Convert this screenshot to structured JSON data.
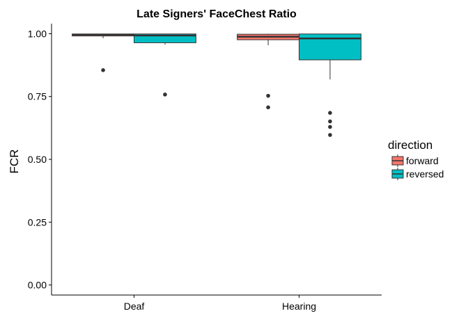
{
  "chart_data": {
    "type": "boxplot",
    "title": "Late Signers' FaceChest Ratio",
    "xlabel": "",
    "ylabel": "FCR",
    "ylim": [
      -0.04,
      1.04
    ],
    "yticks": [
      0.0,
      0.25,
      0.5,
      0.75,
      1.0
    ],
    "ytick_labels": [
      "0.00",
      "0.25",
      "0.50",
      "0.75",
      "1.00"
    ],
    "categories": [
      "Deaf",
      "Hearing"
    ],
    "grid": false,
    "legend": {
      "title": "direction",
      "position": "right"
    },
    "series": [
      {
        "name": "forward",
        "color": "#F8766D",
        "boxes": [
          {
            "category": "Deaf",
            "whisker_low": 0.982,
            "q1": 0.991,
            "median": 0.996,
            "q3": 0.999,
            "whisker_high": 1.0,
            "outliers": [
              0.855
            ]
          },
          {
            "category": "Hearing",
            "whisker_low": 0.954,
            "q1": 0.976,
            "median": 0.988,
            "q3": 0.998,
            "whisker_high": 1.0,
            "outliers": [
              0.753,
              0.707
            ]
          }
        ]
      },
      {
        "name": "reversed",
        "color": "#00BFC4",
        "boxes": [
          {
            "category": "Deaf",
            "whisker_low": 0.957,
            "q1": 0.964,
            "median": 0.993,
            "q3": 0.999,
            "whisker_high": 1.0,
            "outliers": [
              0.758
            ]
          },
          {
            "category": "Hearing",
            "whisker_low": 0.818,
            "q1": 0.896,
            "median": 0.981,
            "q3": 0.999,
            "whisker_high": 1.0,
            "outliers": [
              0.685,
              0.651,
              0.629,
              0.597
            ]
          }
        ]
      }
    ]
  }
}
